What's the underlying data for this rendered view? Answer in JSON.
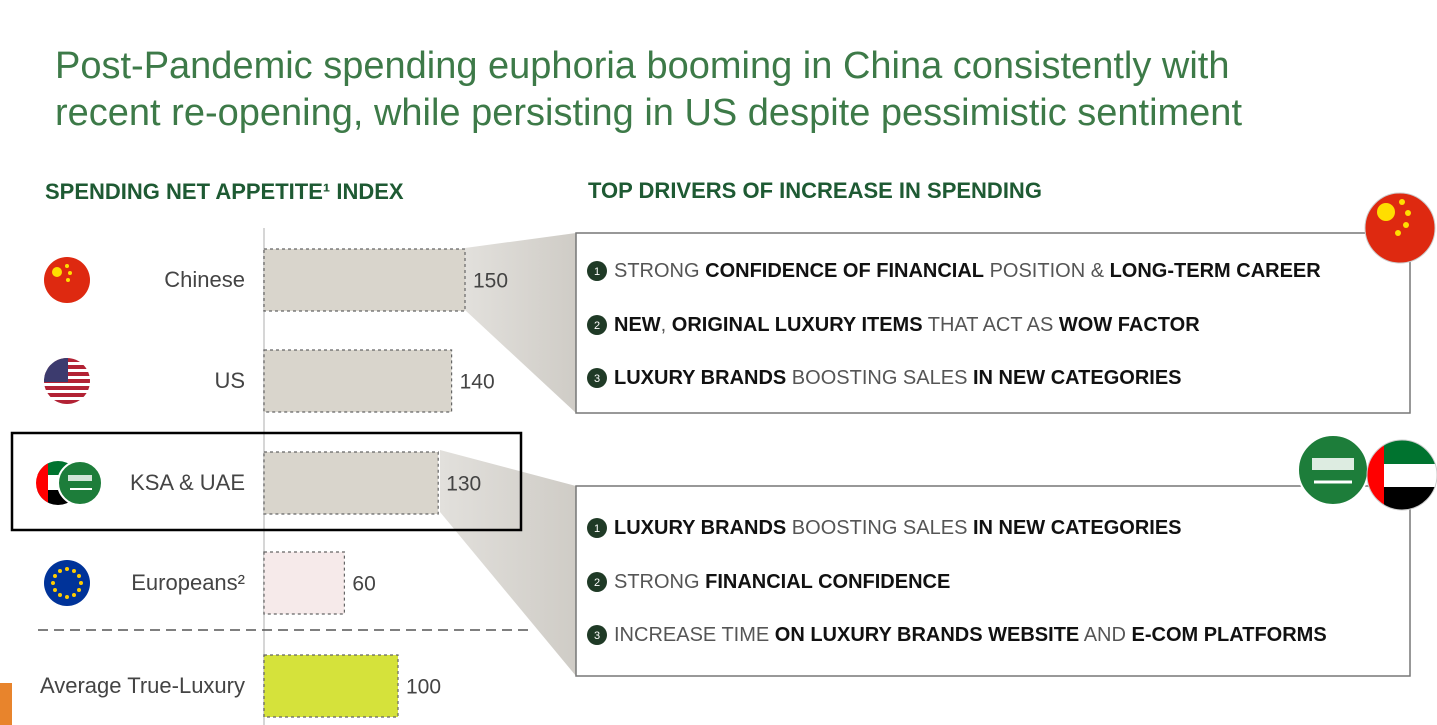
{
  "title": [
    "Post-Pandemic spending euphoria booming in China consistently with",
    "recent re-opening, while persisting in US despite pessimistic sentiment"
  ],
  "chart_data": {
    "type": "bar",
    "title": "SPENDING NET APPETITE¹ INDEX",
    "categories": [
      "Chinese",
      "US",
      "KSA & UAE",
      "Europeans²",
      "Average True-Luxury"
    ],
    "values": [
      150,
      140,
      130,
      60,
      100
    ],
    "colors": [
      "#d9d5cc",
      "#d9d5cc",
      "#d9d5cc",
      "#f6eaea",
      "#d5e23b"
    ],
    "highlight": "KSA & UAE"
  },
  "drivers": {
    "title": "TOP DRIVERS OF INCREASE IN SPENDING",
    "boxes": [
      {
        "items": [
          {
            "number": 1,
            "segments": [
              {
                "text": "STRONG ",
                "bold": false
              },
              {
                "text": "CONFIDENCE OF FINANCIAL",
                "bold": true
              },
              {
                "text": " POSITION & ",
                "bold": false
              },
              {
                "text": "LONG-TERM CAREER",
                "bold": true
              }
            ]
          },
          {
            "number": 2,
            "segments": [
              {
                "text": "NEW",
                "bold": true
              },
              {
                "text": ", ",
                "bold": false
              },
              {
                "text": "ORIGINAL LUXURY ITEMS",
                "bold": true
              },
              {
                "text": " THAT ACT AS ",
                "bold": false
              },
              {
                "text": "WOW FACTOR",
                "bold": true
              }
            ]
          },
          {
            "number": 3,
            "segments": [
              {
                "text": "LUXURY BRANDS",
                "bold": true
              },
              {
                "text": " BOOSTING SALES ",
                "bold": false
              },
              {
                "text": "IN NEW CATEGORIES",
                "bold": true
              }
            ]
          }
        ]
      },
      {
        "items": [
          {
            "number": 1,
            "segments": [
              {
                "text": "LUXURY BRANDS",
                "bold": true
              },
              {
                "text": " BOOSTING SALES ",
                "bold": false
              },
              {
                "text": "IN NEW CATEGORIES",
                "bold": true
              }
            ]
          },
          {
            "number": 2,
            "segments": [
              {
                "text": "STRONG ",
                "bold": false
              },
              {
                "text": "FINANCIAL CONFIDENCE",
                "bold": true
              }
            ]
          },
          {
            "number": 3,
            "segments": [
              {
                "text": "INCREASE TIME ",
                "bold": false
              },
              {
                "text": "ON LUXURY BRANDS WEBSITE",
                "bold": true
              },
              {
                "text": " AND ",
                "bold": false
              },
              {
                "text": "E-COM PLATFORMS",
                "bold": true
              }
            ]
          }
        ]
      }
    ]
  }
}
